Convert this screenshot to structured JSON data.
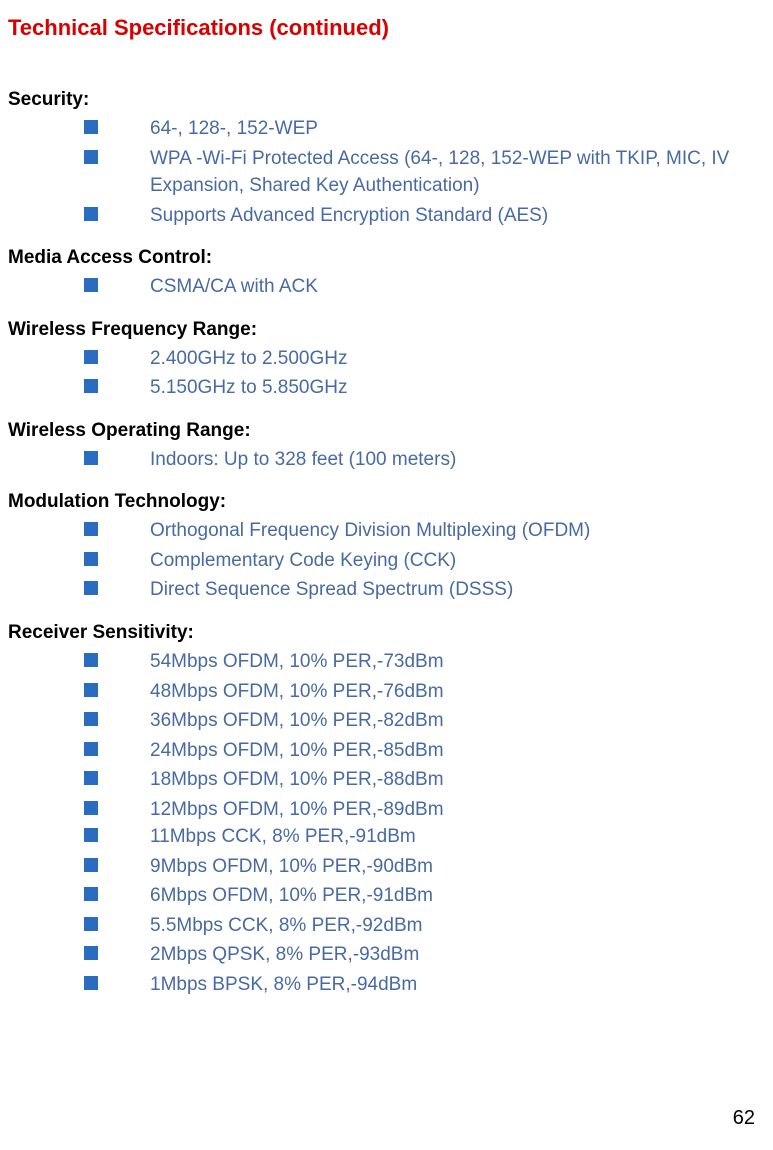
{
  "page": {
    "title": "Technical Specifications (continued)",
    "page_number": "62",
    "colors": {
      "title_color": "#d90000",
      "heading_color": "#000000",
      "bullet_color": "#2a6cbf",
      "text_color": "#486aa3",
      "background": "#ffffff"
    }
  },
  "sections": [
    {
      "heading": "Security:",
      "items": [
        "64-, 128-, 152-WEP",
        "WPA -Wi-Fi Protected Access (64-, 128, 152-WEP with TKIP, MIC, IV Expansion, Shared Key Authentication)",
        "Supports Advanced Encryption Standard (AES)"
      ]
    },
    {
      "heading": "Media Access Control:",
      "items": [
        "CSMA/CA with ACK"
      ]
    },
    {
      "heading": "Wireless Frequency Range:",
      "items": [
        "2.400GHz to 2.500GHz",
        "5.150GHz to 5.850GHz"
      ]
    },
    {
      "heading": "Wireless Operating Range:",
      "items": [
        "Indoors: Up to 328 feet (100 meters)"
      ]
    },
    {
      "heading": "Modulation Technology:",
      "items": [
        "Orthogonal Frequency Division Multiplexing (OFDM)",
        "Complementary Code Keying (CCK)",
        "Direct Sequence Spread Spectrum (DSSS)"
      ]
    },
    {
      "heading": "Receiver Sensitivity:",
      "items": [
        "54Mbps OFDM, 10% PER,-73dBm",
        "48Mbps OFDM, 10% PER,-76dBm",
        "36Mbps OFDM, 10% PER,-82dBm",
        "24Mbps OFDM, 10% PER,-85dBm",
        "18Mbps OFDM, 10% PER,-88dBm",
        "12Mbps OFDM, 10% PER,-89dBm",
        "11Mbps CCK, 8% PER,-91dBm",
        "9Mbps OFDM, 10% PER,-90dBm",
        "6Mbps OFDM, 10% PER,-91dBm",
        "5.5Mbps CCK, 8% PER,-92dBm",
        "2Mbps QPSK, 8% PER,-93dBm",
        "1Mbps BPSK, 8% PER,-94dBm"
      ]
    }
  ]
}
